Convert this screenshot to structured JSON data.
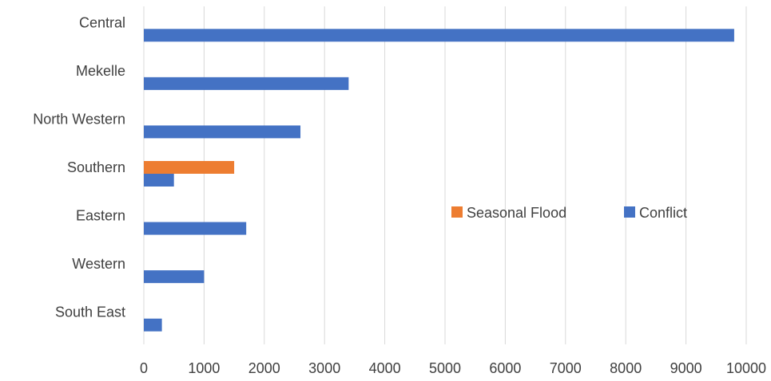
{
  "chart_data": {
    "type": "bar",
    "orientation": "horizontal",
    "categories": [
      "Central",
      "Mekelle",
      "North Western",
      "Southern",
      "Eastern",
      "Western",
      "South East"
    ],
    "series": [
      {
        "name": "Seasonal Flood",
        "color": "#ED7D31",
        "values": [
          0,
          0,
          0,
          1500,
          0,
          0,
          0
        ]
      },
      {
        "name": "Conflict",
        "color": "#4472C4",
        "values": [
          9800,
          3400,
          2600,
          500,
          1700,
          1000,
          300
        ]
      }
    ],
    "xlim": [
      0,
      10000
    ],
    "xticks": [
      "0",
      "1000",
      "2000",
      "3000",
      "4000",
      "5000",
      "6000",
      "7000",
      "8000",
      "9000",
      "10000"
    ],
    "title": "",
    "xlabel": "",
    "ylabel": "",
    "grid": "vertical",
    "legend_position": "right"
  }
}
